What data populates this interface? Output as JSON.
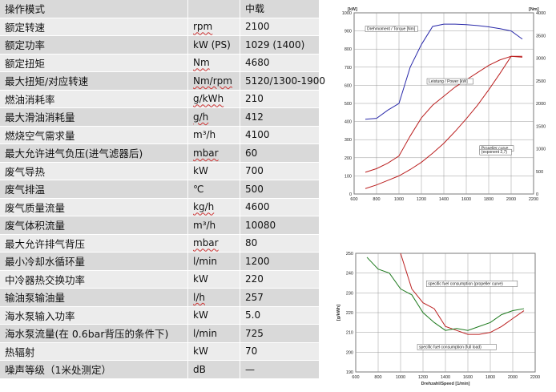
{
  "table": {
    "header": {
      "param": "操作模式",
      "unit": "",
      "value": "中载"
    },
    "rows": [
      {
        "param": "额定转速",
        "unit": "rpm",
        "value": "2100"
      },
      {
        "param": "额定功率",
        "unit": "kW (PS)",
        "value": "1029 (1400)"
      },
      {
        "param": "额定扭矩",
        "unit": "Nm",
        "value": "4680"
      },
      {
        "param": "最大扭矩/对应转速",
        "unit": "Nm/rpm",
        "value": "5120/1300-1900"
      },
      {
        "param": "燃油消耗率",
        "unit": "g/kWh",
        "value": "210"
      },
      {
        "param": "最大滑油消耗量",
        "unit": "g/h",
        "value": "412"
      },
      {
        "param": "燃烧空气需求量",
        "unit": "m³/h",
        "value": "4100"
      },
      {
        "param": "最大允许进气负压(进气滤器后)",
        "unit": "mbar",
        "value": "60"
      },
      {
        "param": "废气导热",
        "unit": "kW",
        "value": "700"
      },
      {
        "param": "废气排温",
        "unit": "℃",
        "value": "500"
      },
      {
        "param": "废气质量流量",
        "unit": "kg/h",
        "value": "4600"
      },
      {
        "param": "废气体积流量",
        "unit": "m³/h",
        "value": "10080"
      },
      {
        "param": "最大允许排气背压",
        "unit": "mbar",
        "value": "80"
      },
      {
        "param": "最小冷却水循环量",
        "unit": "l/min",
        "value": "1200"
      },
      {
        "param": "中冷器热交换功率",
        "unit": "kW",
        "value": "220"
      },
      {
        "param": "输油泵输油量",
        "unit": "l/h",
        "value": "257"
      },
      {
        "param": "海水泵输入功率",
        "unit": "kW",
        "value": "5.0"
      },
      {
        "param": "海水泵流量(在 0.6bar背压的条件下)",
        "unit": "l/min",
        "value": "725"
      },
      {
        "param": "热辐射",
        "unit": "kW",
        "value": "70"
      },
      {
        "param": "噪声等级（1米处测定）",
        "unit": "dB",
        "value": "—"
      }
    ]
  },
  "chart_data": [
    {
      "type": "line",
      "xlim": [
        600,
        2200
      ],
      "ylim": [
        0,
        1000
      ],
      "y2lim": [
        0,
        4000
      ],
      "xticks": [
        "600",
        "800",
        "1000",
        "1200",
        "1400",
        "1600",
        "1800",
        "2000",
        "2200"
      ],
      "yticks": [
        "0",
        "100",
        "200",
        "300",
        "400",
        "500",
        "600",
        "700",
        "800",
        "900",
        "1000"
      ],
      "y2ticks": [
        "0",
        "500",
        "1000",
        "1500",
        "2000",
        "2500",
        "3000",
        "3500",
        "4000"
      ],
      "ylabel": "[kW]",
      "y2label": "[Nm]",
      "grid": true,
      "annotations": [
        {
          "text": "Drehmoment / Torque [Nm]",
          "x": 700,
          "y": 905
        },
        {
          "text": "Leistung / Power [kW]",
          "x": 1250,
          "y": 615
        },
        {
          "text": "Propeller curve",
          "x": 1720,
          "y": 245
        },
        {
          "text": "(exponent 2,7)",
          "x": 1720,
          "y": 225
        }
      ],
      "series": [
        {
          "axis": "y2",
          "color": "#2a2aaa",
          "x": [
            700,
            800,
            900,
            1000,
            1100,
            1200,
            1300,
            1400,
            1500,
            1600,
            1700,
            1800,
            1900,
            2000,
            2100
          ],
          "values": [
            1650,
            1670,
            1850,
            2000,
            2800,
            3300,
            3700,
            3750,
            3750,
            3740,
            3720,
            3690,
            3650,
            3600,
            3420
          ]
        },
        {
          "axis": "y",
          "color": "#bb2020",
          "x": [
            700,
            800,
            900,
            1000,
            1100,
            1200,
            1300,
            1400,
            1500,
            1600,
            1700,
            1800,
            1900,
            2000,
            2100
          ],
          "values": [
            120,
            140,
            170,
            210,
            320,
            420,
            490,
            540,
            590,
            630,
            670,
            710,
            740,
            760,
            755
          ]
        },
        {
          "axis": "y",
          "color": "#bb2020",
          "x": [
            700,
            800,
            900,
            1000,
            1100,
            1200,
            1300,
            1400,
            1500,
            1600,
            1700,
            1800,
            1900,
            2000,
            2100
          ],
          "values": [
            30,
            50,
            75,
            100,
            135,
            175,
            225,
            280,
            345,
            415,
            490,
            575,
            665,
            760,
            760
          ]
        }
      ]
    },
    {
      "type": "line",
      "xlim": [
        600,
        2200
      ],
      "ylim": [
        190,
        250
      ],
      "xticks": [
        "600",
        "800",
        "1000",
        "1200",
        "1400",
        "1600",
        "1800",
        "2000",
        "2200"
      ],
      "yticks": [
        "190",
        "200",
        "210",
        "220",
        "230",
        "240",
        "250"
      ],
      "xlabel": "Drehzahl/Speed [1/min]",
      "ylabel": "[g/kWh]",
      "grid": true,
      "annotations": [
        {
          "text": "specific fuel consumption (propeller curve)",
          "x": 1230,
          "y": 234
        },
        {
          "text": "specific fuel consumption (full load)",
          "x": 1150,
          "y": 202
        }
      ],
      "series": [
        {
          "color": "#bb2020",
          "x": [
            1000,
            1100,
            1200,
            1300,
            1400,
            1500,
            1600,
            1700,
            1800,
            1900,
            2000,
            2100
          ],
          "values": [
            250,
            232,
            225,
            222,
            213,
            211,
            209,
            209,
            210,
            213,
            217,
            221
          ]
        },
        {
          "color": "#1e7a1e",
          "x": [
            700,
            800,
            900,
            1000,
            1100,
            1200,
            1300,
            1400,
            1500,
            1600,
            1700,
            1800,
            1900,
            2000,
            2100
          ],
          "values": [
            248,
            242,
            240,
            232,
            229,
            220,
            215,
            211,
            212,
            211,
            213,
            215,
            219,
            221,
            222
          ]
        }
      ]
    }
  ]
}
